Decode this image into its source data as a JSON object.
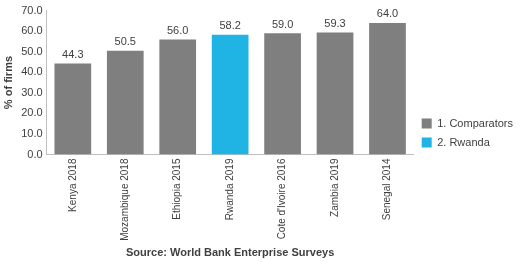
{
  "chart_data": {
    "type": "bar",
    "xlabel": "Source: World Bank Enterprise Surveys",
    "ylabel": "% of firms",
    "categories": [
      "Kenya 2018",
      "Mozambique 2018",
      "Ethiopia 2015",
      "Rwanda 2019",
      "Cote d'Ivoire 2016",
      "Zambia 2019",
      "Senegal 2014"
    ],
    "series": [
      {
        "name": "1. Comparators",
        "color": "#7f7f7f",
        "values": [
          44.3,
          50.5,
          56.0,
          null,
          59.0,
          59.3,
          64.0
        ],
        "value_labels": [
          "44.3",
          "50.5",
          "56.0",
          null,
          "59.0",
          "59.3",
          "64.0"
        ]
      },
      {
        "name": "2. Rwanda",
        "color": "#1fb4e3",
        "values": [
          null,
          null,
          null,
          58.2,
          null,
          null,
          null
        ],
        "value_labels": [
          null,
          null,
          null,
          "58.2",
          null,
          null,
          null
        ]
      }
    ],
    "ylim": [
      0,
      70
    ],
    "yticks": [
      {
        "value": 0,
        "label": "0.0"
      },
      {
        "value": 10,
        "label": "10.0"
      },
      {
        "value": 20,
        "label": "20.0"
      },
      {
        "value": 30,
        "label": "30.0"
      },
      {
        "value": 40,
        "label": "40.0"
      },
      {
        "value": 50,
        "label": "50.0"
      },
      {
        "value": 60,
        "label": "60.0"
      },
      {
        "value": 70,
        "label": "70.0"
      }
    ],
    "grid": false,
    "legend": "right",
    "data_labels": true
  }
}
